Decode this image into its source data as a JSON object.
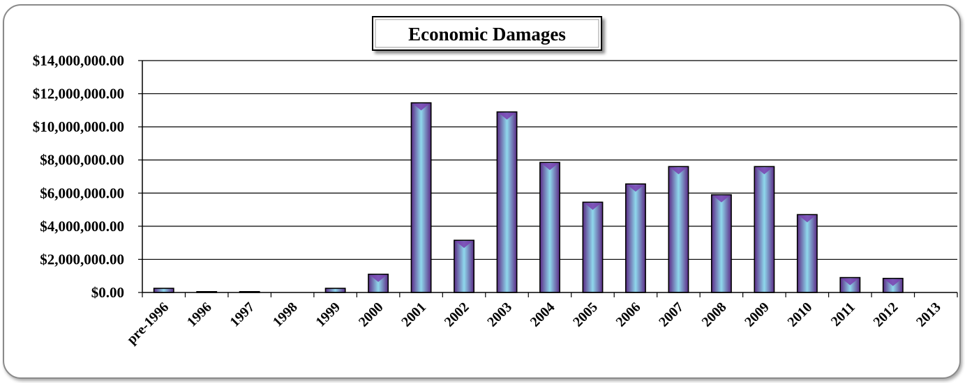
{
  "chart_data": {
    "type": "bar",
    "title": "Economic Damages",
    "xlabel": "",
    "ylabel": "",
    "ylim": [
      0,
      14000000
    ],
    "yticks": [
      0,
      2000000,
      4000000,
      6000000,
      8000000,
      10000000,
      12000000,
      14000000
    ],
    "ytick_labels": [
      "$0.00",
      "$2,000,000.00",
      "$4,000,000.00",
      "$6,000,000.00",
      "$8,000,000.00",
      "$10,000,000.00",
      "$12,000,000.00",
      "$14,000,000.00"
    ],
    "categories": [
      "pre-1996",
      "1996",
      "1997",
      "1998",
      "1999",
      "2000",
      "2001",
      "2002",
      "2003",
      "2004",
      "2005",
      "2006",
      "2007",
      "2008",
      "2009",
      "2010",
      "2011",
      "2012",
      "2013"
    ],
    "values": [
      250000,
      50000,
      50000,
      0,
      250000,
      1100000,
      11450000,
      3150000,
      10900000,
      7850000,
      5450000,
      6550000,
      7600000,
      5900000,
      7600000,
      4700000,
      900000,
      850000,
      0
    ],
    "grid": true,
    "legend": "none",
    "colors": {
      "bar_edge": "#5b2a86",
      "bar_center": "#8fd8ec",
      "bar_outline": "#000000",
      "grid": "#000000"
    }
  }
}
